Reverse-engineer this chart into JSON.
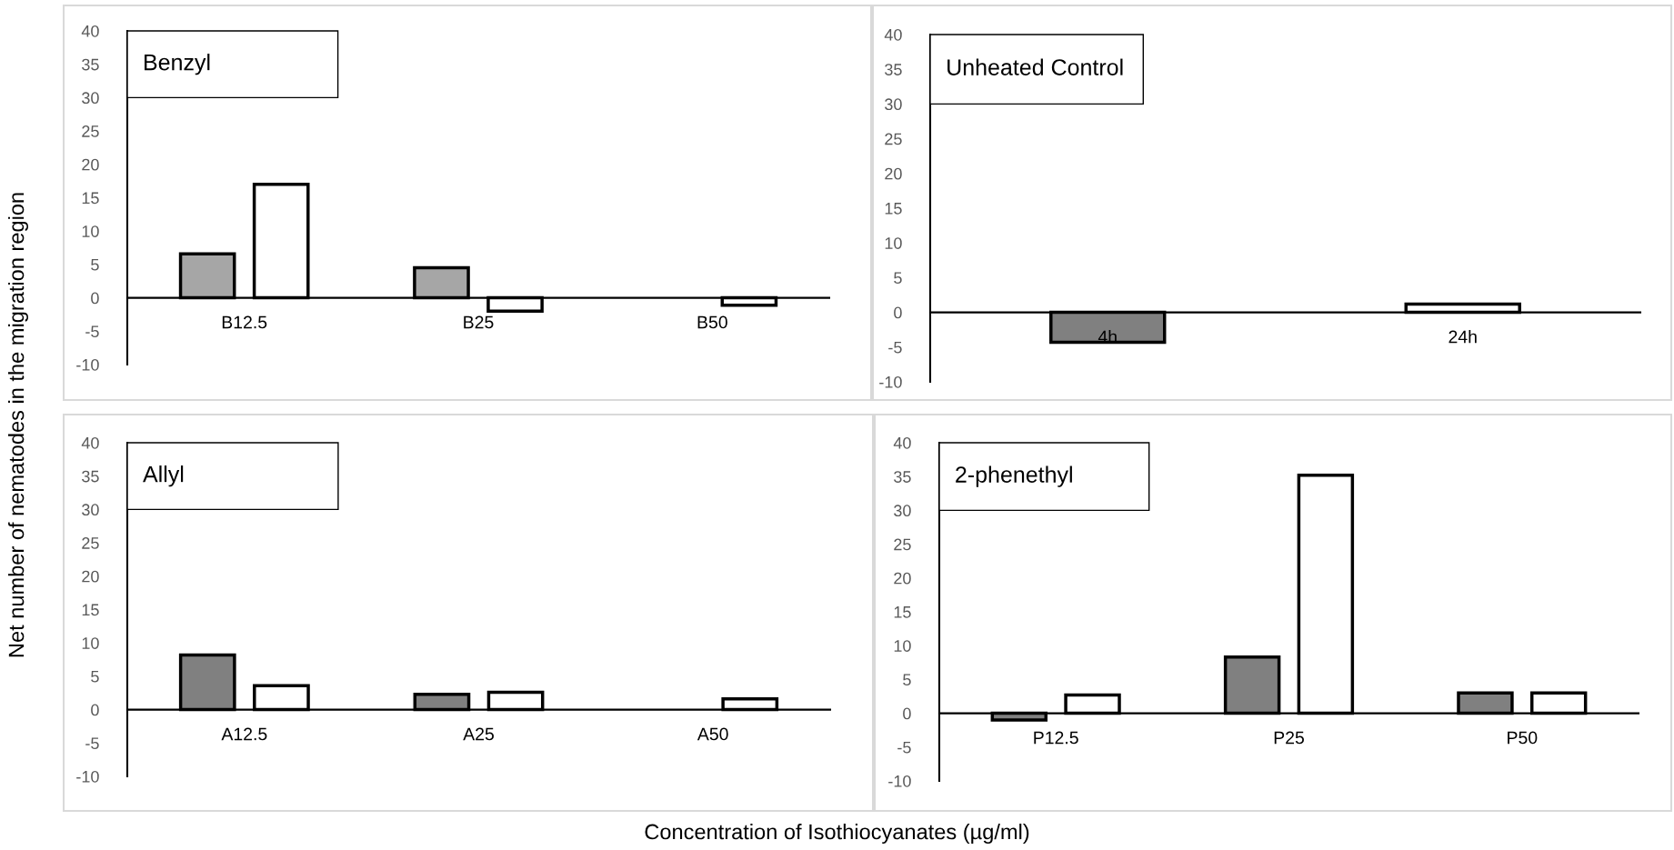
{
  "chart_data": [
    {
      "type": "bar",
      "title": "Benzyl",
      "ylabel": "Net number of nematodes in the migration region",
      "categories": [
        "B12.5",
        "B25",
        "B50"
      ],
      "ylim": [
        -10,
        40
      ],
      "yticks": [
        -10,
        -5,
        0,
        5,
        10,
        15,
        20,
        25,
        30,
        35,
        40
      ],
      "grid": false,
      "series": [
        {
          "color": "#a6a6a6",
          "values": [
            6.6,
            4.5,
            null
          ]
        },
        {
          "color": "#ffffff",
          "values": [
            17.0,
            -2.0,
            -1.1
          ]
        }
      ]
    },
    {
      "type": "bar",
      "title": "Unheated Control",
      "categories": [
        "4h",
        "24h"
      ],
      "ylim": [
        -10,
        40
      ],
      "yticks": [
        -10,
        -5,
        0,
        5,
        10,
        15,
        20,
        25,
        30,
        35,
        40
      ],
      "grid": false,
      "series": [
        {
          "colors": [
            "#808080",
            "#ffffff"
          ],
          "values": [
            -4.3,
            1.2
          ]
        }
      ]
    },
    {
      "type": "bar",
      "title": "Allyl",
      "xlabel": "Concentration of Isothiocyanates (µg/ml)",
      "categories": [
        "A12.5",
        "A25",
        "A50"
      ],
      "ylim": [
        -10,
        40
      ],
      "yticks": [
        -10,
        -5,
        0,
        5,
        10,
        15,
        20,
        25,
        30,
        35,
        40
      ],
      "grid": false,
      "series": [
        {
          "color": "#808080",
          "values": [
            8.2,
            2.3,
            null
          ]
        },
        {
          "color": "#ffffff",
          "values": [
            3.6,
            2.6,
            1.6
          ]
        }
      ]
    },
    {
      "type": "bar",
      "title": "2-phenethyl",
      "categories": [
        "P12.5",
        "P25",
        "P50"
      ],
      "ylim": [
        -10,
        40
      ],
      "yticks": [
        -10,
        -5,
        0,
        5,
        10,
        15,
        20,
        25,
        30,
        35,
        40
      ],
      "grid": false,
      "series": [
        {
          "color": "#808080",
          "values": [
            -1.0,
            8.3,
            3.0
          ]
        },
        {
          "color": "#ffffff",
          "values": [
            2.7,
            35.2,
            3.0
          ]
        }
      ]
    }
  ]
}
